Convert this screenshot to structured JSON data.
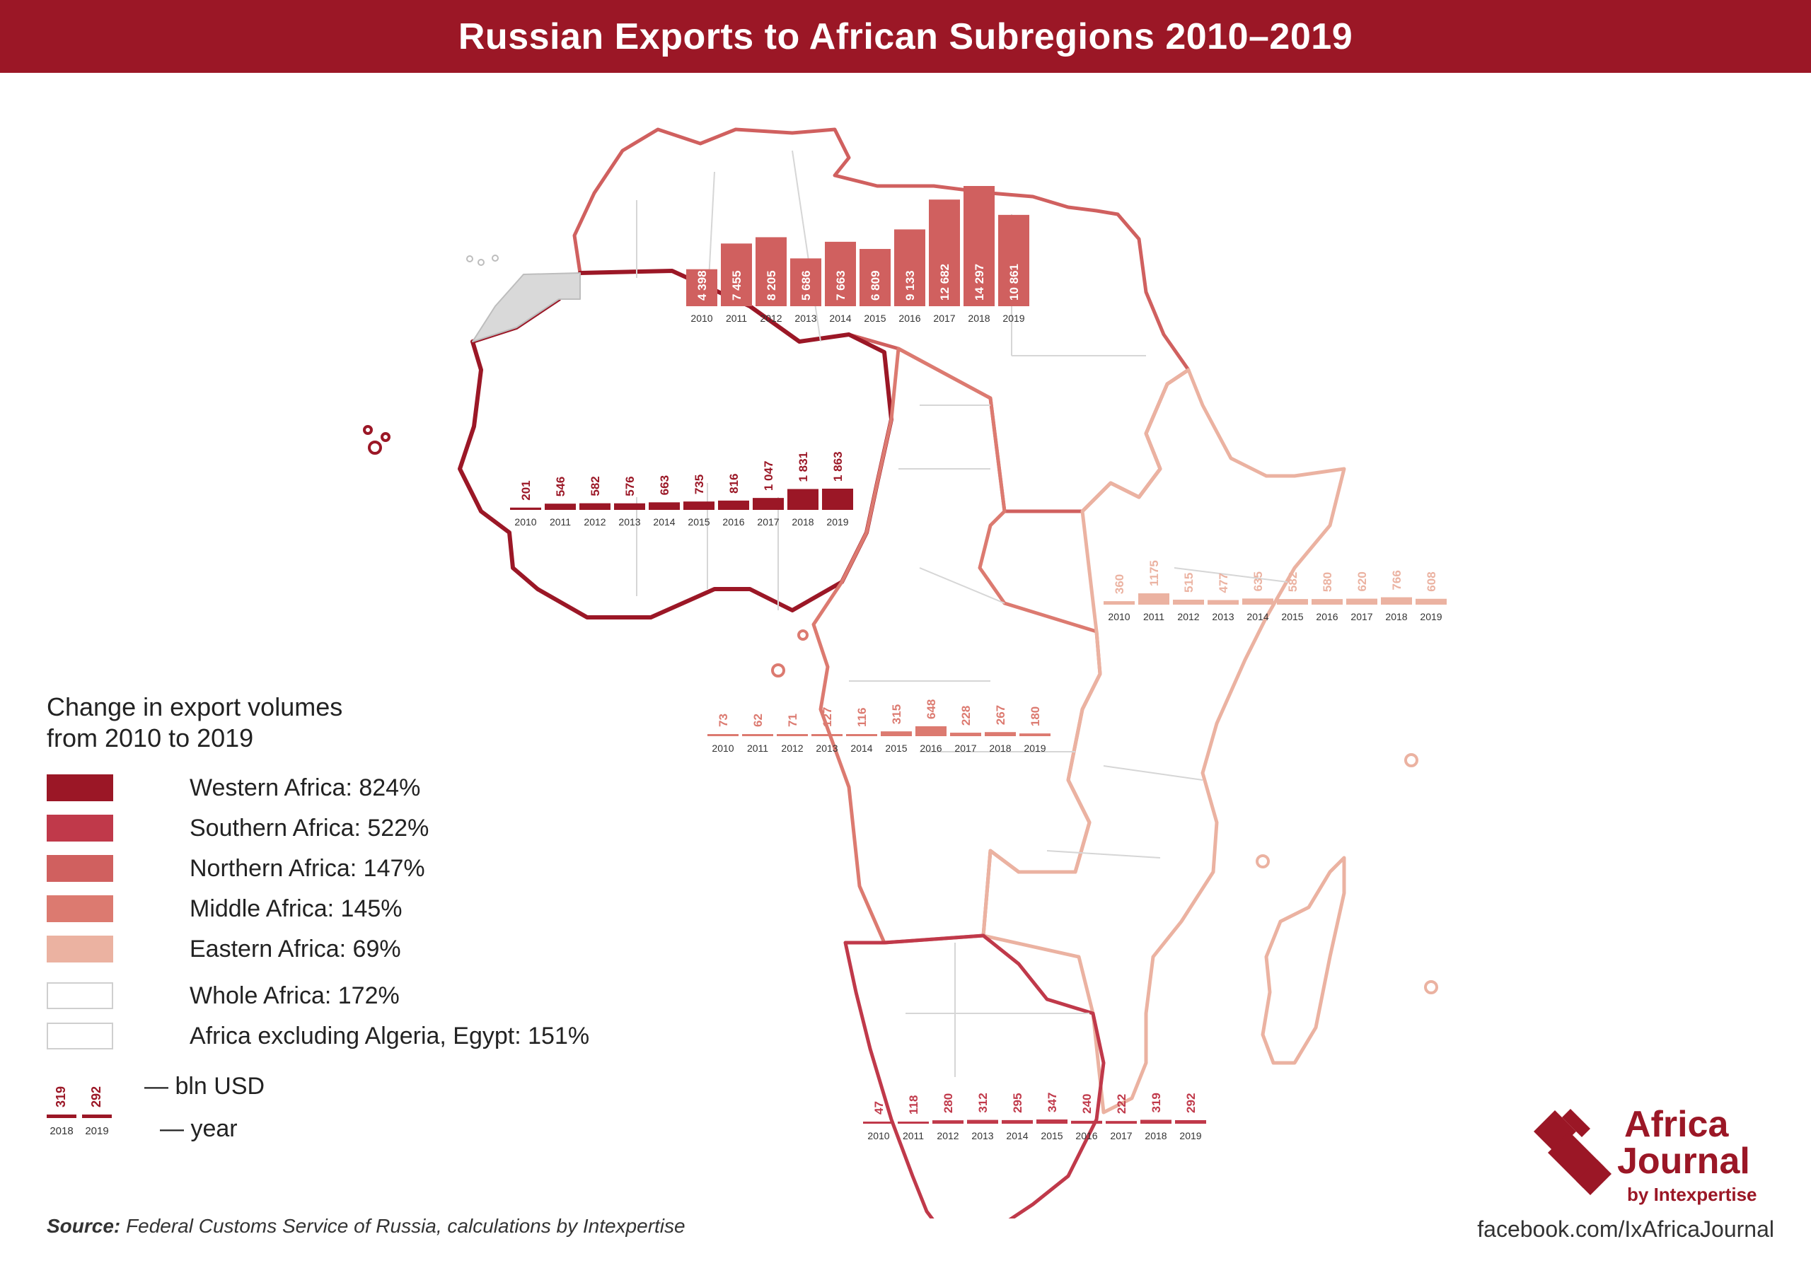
{
  "title": "Russian Exports to African Subregions 2010–2019",
  "legend": {
    "title_line1": "Change in export volumes",
    "title_line2": "from 2010 to 2019",
    "items": [
      {
        "label": "Western Africa: 824%",
        "color": "#9b1726"
      },
      {
        "label": "Southern Africa: 522%",
        "color": "#c0394a"
      },
      {
        "label": "Northern Africa: 147%",
        "color": "#d0605f"
      },
      {
        "label": "Middle Africa: 145%",
        "color": "#dc7a70"
      },
      {
        "label": "Eastern Africa: 69%",
        "color": "#ebb2a1"
      },
      {
        "label": "Whole Africa: 172%",
        "color": "#ffffff"
      },
      {
        "label": "Africa excluding Algeria, Egypt: 151%",
        "color": "#ffffff"
      }
    ],
    "key": {
      "values": [
        "319",
        "292"
      ],
      "years": [
        "2018",
        "2019"
      ],
      "value_label": "— bln USD",
      "year_label": "— year"
    }
  },
  "source_label": "Source:",
  "source_text": "Federal Customs Service of Russia, calculations by Intexpertise",
  "facebook": "facebook.com/IxAfricaJournal",
  "logo": {
    "line1": "Africa",
    "line2": "Journal",
    "line3": "by Intexpertise"
  },
  "chart_data": [
    {
      "type": "bar",
      "region": "Northern Africa",
      "color": "#d0605f",
      "categories": [
        "2010",
        "2011",
        "2012",
        "2013",
        "2014",
        "2015",
        "2016",
        "2017",
        "2018",
        "2019"
      ],
      "values": [
        4398,
        7455,
        8205,
        5686,
        7663,
        6809,
        9133,
        12682,
        14297,
        10861
      ],
      "value_labels": [
        "4 398",
        "7 455",
        "8 205",
        "5 686",
        "7 663",
        "6 809",
        "9 133",
        "12 682",
        "14 297",
        "10 861"
      ]
    },
    {
      "type": "bar",
      "region": "Western Africa",
      "color": "#9b1726",
      "categories": [
        "2010",
        "2011",
        "2012",
        "2013",
        "2014",
        "2015",
        "2016",
        "2017",
        "2018",
        "2019"
      ],
      "values": [
        201,
        546,
        582,
        576,
        663,
        735,
        816,
        1047,
        1831,
        1863
      ],
      "value_labels": [
        "201",
        "546",
        "582",
        "576",
        "663",
        "735",
        "816",
        "1 047",
        "1 831",
        "1 863"
      ]
    },
    {
      "type": "bar",
      "region": "Eastern Africa",
      "color": "#ebb2a1",
      "categories": [
        "2010",
        "2011",
        "2012",
        "2013",
        "2014",
        "2015",
        "2016",
        "2017",
        "2018",
        "2019"
      ],
      "values": [
        360,
        1175,
        515,
        477,
        635,
        582,
        580,
        620,
        766,
        608
      ],
      "value_labels": [
        "360",
        "1175",
        "515",
        "477",
        "635",
        "582",
        "580",
        "620",
        "766",
        "608"
      ]
    },
    {
      "type": "bar",
      "region": "Middle Africa",
      "color": "#dc7a70",
      "categories": [
        "2010",
        "2011",
        "2012",
        "2013",
        "2014",
        "2015",
        "2016",
        "2017",
        "2018",
        "2019"
      ],
      "values": [
        73,
        62,
        71,
        127,
        116,
        315,
        648,
        228,
        267,
        180
      ],
      "value_labels": [
        "73",
        "62",
        "71",
        "127",
        "116",
        "315",
        "648",
        "228",
        "267",
        "180"
      ]
    },
    {
      "type": "bar",
      "region": "Southern Africa",
      "color": "#c0394a",
      "categories": [
        "2010",
        "2011",
        "2012",
        "2013",
        "2014",
        "2015",
        "2016",
        "2017",
        "2018",
        "2019"
      ],
      "values": [
        47,
        118,
        280,
        312,
        295,
        347,
        240,
        222,
        319,
        292
      ],
      "value_labels": [
        "47",
        "118",
        "280",
        "312",
        "295",
        "347",
        "240",
        "222",
        "319",
        "292"
      ]
    }
  ]
}
